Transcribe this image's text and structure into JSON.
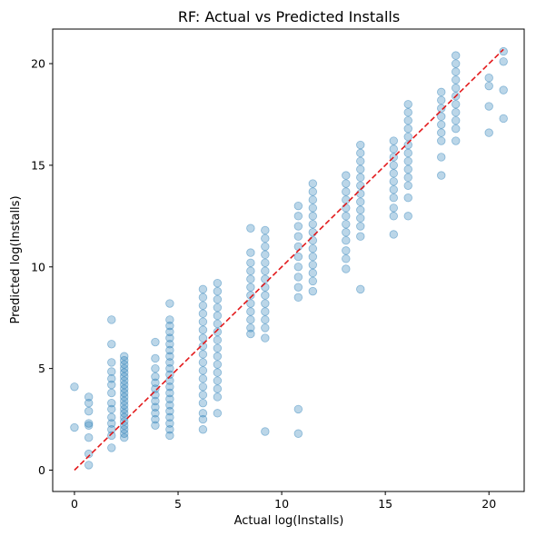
{
  "chart_data": {
    "type": "scatter",
    "title": "RF: Actual vs Predicted Installs",
    "xlabel": "Actual log(Installs)",
    "ylabel": "Predicted log(Installs)",
    "xlim": [
      -1.05,
      21.7
    ],
    "ylim": [
      -1.05,
      21.7
    ],
    "x_ticks": [
      0,
      5,
      10,
      15,
      20
    ],
    "y_ticks": [
      0,
      5,
      10,
      15,
      20
    ],
    "x_tick_labels": [
      "0",
      "5",
      "10",
      "15",
      "20"
    ],
    "y_tick_labels": [
      "0",
      "5",
      "10",
      "15",
      "20"
    ],
    "grid": false,
    "legend": "none",
    "colors": {
      "points": "#1f77b4",
      "reference_line": "#e31a1c"
    },
    "point_alpha": 0.3,
    "reference_line": {
      "from": [
        0,
        0
      ],
      "to": [
        20.7,
        20.7
      ],
      "style": "dashed"
    },
    "series": [
      {
        "points": [
          {
            "x": 0.0,
            "y": 4.1
          },
          {
            "x": 0.0,
            "y": 2.1
          },
          {
            "x": 0.69,
            "y": 3.6
          },
          {
            "x": 0.69,
            "y": 3.3
          },
          {
            "x": 0.69,
            "y": 2.9
          },
          {
            "x": 0.69,
            "y": 2.3
          },
          {
            "x": 0.69,
            "y": 2.2
          },
          {
            "x": 0.69,
            "y": 1.6
          },
          {
            "x": 0.69,
            "y": 0.8
          },
          {
            "x": 0.69,
            "y": 0.25
          },
          {
            "x": 1.79,
            "y": 7.4
          },
          {
            "x": 1.79,
            "y": 6.2
          },
          {
            "x": 1.79,
            "y": 5.3
          },
          {
            "x": 1.79,
            "y": 4.85
          },
          {
            "x": 1.79,
            "y": 4.5
          },
          {
            "x": 1.79,
            "y": 4.2
          },
          {
            "x": 1.79,
            "y": 3.8
          },
          {
            "x": 1.79,
            "y": 3.3
          },
          {
            "x": 1.79,
            "y": 3.0
          },
          {
            "x": 1.79,
            "y": 2.6
          },
          {
            "x": 1.79,
            "y": 2.3
          },
          {
            "x": 1.79,
            "y": 2.0
          },
          {
            "x": 1.79,
            "y": 1.7
          },
          {
            "x": 1.79,
            "y": 1.1
          },
          {
            "x": 2.4,
            "y": 5.6
          },
          {
            "x": 2.4,
            "y": 5.4
          },
          {
            "x": 2.4,
            "y": 5.2
          },
          {
            "x": 2.4,
            "y": 5.0
          },
          {
            "x": 2.4,
            "y": 4.8
          },
          {
            "x": 2.4,
            "y": 4.6
          },
          {
            "x": 2.4,
            "y": 4.4
          },
          {
            "x": 2.4,
            "y": 4.2
          },
          {
            "x": 2.4,
            "y": 4.0
          },
          {
            "x": 2.4,
            "y": 3.8
          },
          {
            "x": 2.4,
            "y": 3.6
          },
          {
            "x": 2.4,
            "y": 3.4
          },
          {
            "x": 2.4,
            "y": 3.2
          },
          {
            "x": 2.4,
            "y": 3.0
          },
          {
            "x": 2.4,
            "y": 2.8
          },
          {
            "x": 2.4,
            "y": 2.6
          },
          {
            "x": 2.4,
            "y": 2.4
          },
          {
            "x": 2.4,
            "y": 2.2
          },
          {
            "x": 2.4,
            "y": 2.0
          },
          {
            "x": 2.4,
            "y": 1.8
          },
          {
            "x": 2.4,
            "y": 1.6
          },
          {
            "x": 3.9,
            "y": 6.3
          },
          {
            "x": 3.9,
            "y": 5.5
          },
          {
            "x": 3.9,
            "y": 5.0
          },
          {
            "x": 3.9,
            "y": 4.6
          },
          {
            "x": 3.9,
            "y": 4.3
          },
          {
            "x": 3.9,
            "y": 4.0
          },
          {
            "x": 3.9,
            "y": 3.7
          },
          {
            "x": 3.9,
            "y": 3.4
          },
          {
            "x": 3.9,
            "y": 3.1
          },
          {
            "x": 3.9,
            "y": 2.8
          },
          {
            "x": 3.9,
            "y": 2.5
          },
          {
            "x": 3.9,
            "y": 2.2
          },
          {
            "x": 4.6,
            "y": 8.2
          },
          {
            "x": 4.6,
            "y": 7.4
          },
          {
            "x": 4.6,
            "y": 7.1
          },
          {
            "x": 4.6,
            "y": 6.8
          },
          {
            "x": 4.6,
            "y": 6.5
          },
          {
            "x": 4.6,
            "y": 6.2
          },
          {
            "x": 4.6,
            "y": 5.9
          },
          {
            "x": 4.6,
            "y": 5.6
          },
          {
            "x": 4.6,
            "y": 5.3
          },
          {
            "x": 4.6,
            "y": 5.0
          },
          {
            "x": 4.6,
            "y": 4.7
          },
          {
            "x": 4.6,
            "y": 4.4
          },
          {
            "x": 4.6,
            "y": 4.1
          },
          {
            "x": 4.6,
            "y": 3.8
          },
          {
            "x": 4.6,
            "y": 3.5
          },
          {
            "x": 4.6,
            "y": 3.2
          },
          {
            "x": 4.6,
            "y": 2.9
          },
          {
            "x": 4.6,
            "y": 2.6
          },
          {
            "x": 4.6,
            "y": 2.3
          },
          {
            "x": 4.6,
            "y": 2.0
          },
          {
            "x": 4.6,
            "y": 1.7
          },
          {
            "x": 6.2,
            "y": 8.9
          },
          {
            "x": 6.2,
            "y": 8.5
          },
          {
            "x": 6.2,
            "y": 8.1
          },
          {
            "x": 6.2,
            "y": 7.7
          },
          {
            "x": 6.2,
            "y": 7.3
          },
          {
            "x": 6.2,
            "y": 6.9
          },
          {
            "x": 6.2,
            "y": 6.5
          },
          {
            "x": 6.2,
            "y": 6.1
          },
          {
            "x": 6.2,
            "y": 5.7
          },
          {
            "x": 6.2,
            "y": 5.3
          },
          {
            "x": 6.2,
            "y": 4.9
          },
          {
            "x": 6.2,
            "y": 4.5
          },
          {
            "x": 6.2,
            "y": 4.1
          },
          {
            "x": 6.2,
            "y": 3.7
          },
          {
            "x": 6.2,
            "y": 3.3
          },
          {
            "x": 6.2,
            "y": 2.8
          },
          {
            "x": 6.2,
            "y": 2.5
          },
          {
            "x": 6.2,
            "y": 2.0
          },
          {
            "x": 6.9,
            "y": 9.2
          },
          {
            "x": 6.9,
            "y": 8.8
          },
          {
            "x": 6.9,
            "y": 8.4
          },
          {
            "x": 6.9,
            "y": 8.0
          },
          {
            "x": 6.9,
            "y": 7.6
          },
          {
            "x": 6.9,
            "y": 7.2
          },
          {
            "x": 6.9,
            "y": 6.8
          },
          {
            "x": 6.9,
            "y": 6.4
          },
          {
            "x": 6.9,
            "y": 6.0
          },
          {
            "x": 6.9,
            "y": 5.6
          },
          {
            "x": 6.9,
            "y": 5.2
          },
          {
            "x": 6.9,
            "y": 4.8
          },
          {
            "x": 6.9,
            "y": 4.4
          },
          {
            "x": 6.9,
            "y": 4.0
          },
          {
            "x": 6.9,
            "y": 3.6
          },
          {
            "x": 6.9,
            "y": 2.8
          },
          {
            "x": 8.5,
            "y": 11.9
          },
          {
            "x": 8.5,
            "y": 10.7
          },
          {
            "x": 8.5,
            "y": 10.2
          },
          {
            "x": 8.5,
            "y": 9.8
          },
          {
            "x": 8.5,
            "y": 9.4
          },
          {
            "x": 8.5,
            "y": 9.0
          },
          {
            "x": 8.5,
            "y": 8.6
          },
          {
            "x": 8.5,
            "y": 8.2
          },
          {
            "x": 8.5,
            "y": 7.8
          },
          {
            "x": 8.5,
            "y": 7.4
          },
          {
            "x": 8.5,
            "y": 7.0
          },
          {
            "x": 8.5,
            "y": 6.7
          },
          {
            "x": 9.2,
            "y": 11.8
          },
          {
            "x": 9.2,
            "y": 11.4
          },
          {
            "x": 9.2,
            "y": 11.0
          },
          {
            "x": 9.2,
            "y": 10.6
          },
          {
            "x": 9.2,
            "y": 10.2
          },
          {
            "x": 9.2,
            "y": 9.8
          },
          {
            "x": 9.2,
            "y": 9.4
          },
          {
            "x": 9.2,
            "y": 9.0
          },
          {
            "x": 9.2,
            "y": 8.6
          },
          {
            "x": 9.2,
            "y": 8.2
          },
          {
            "x": 9.2,
            "y": 7.8
          },
          {
            "x": 9.2,
            "y": 7.4
          },
          {
            "x": 9.2,
            "y": 7.0
          },
          {
            "x": 9.2,
            "y": 6.5
          },
          {
            "x": 9.2,
            "y": 1.9
          },
          {
            "x": 10.8,
            "y": 13.0
          },
          {
            "x": 10.8,
            "y": 12.5
          },
          {
            "x": 10.8,
            "y": 12.0
          },
          {
            "x": 10.8,
            "y": 11.5
          },
          {
            "x": 10.8,
            "y": 11.0
          },
          {
            "x": 10.8,
            "y": 10.5
          },
          {
            "x": 10.8,
            "y": 10.0
          },
          {
            "x": 10.8,
            "y": 9.5
          },
          {
            "x": 10.8,
            "y": 9.0
          },
          {
            "x": 10.8,
            "y": 8.5
          },
          {
            "x": 10.8,
            "y": 3.0
          },
          {
            "x": 10.8,
            "y": 1.8
          },
          {
            "x": 11.5,
            "y": 14.1
          },
          {
            "x": 11.5,
            "y": 13.7
          },
          {
            "x": 11.5,
            "y": 13.3
          },
          {
            "x": 11.5,
            "y": 12.9
          },
          {
            "x": 11.5,
            "y": 12.5
          },
          {
            "x": 11.5,
            "y": 12.1
          },
          {
            "x": 11.5,
            "y": 11.7
          },
          {
            "x": 11.5,
            "y": 11.3
          },
          {
            "x": 11.5,
            "y": 10.9
          },
          {
            "x": 11.5,
            "y": 10.5
          },
          {
            "x": 11.5,
            "y": 10.1
          },
          {
            "x": 11.5,
            "y": 9.7
          },
          {
            "x": 11.5,
            "y": 9.3
          },
          {
            "x": 11.5,
            "y": 8.8
          },
          {
            "x": 13.1,
            "y": 14.5
          },
          {
            "x": 13.1,
            "y": 14.1
          },
          {
            "x": 13.1,
            "y": 13.7
          },
          {
            "x": 13.1,
            "y": 13.3
          },
          {
            "x": 13.1,
            "y": 12.9
          },
          {
            "x": 13.1,
            "y": 12.5
          },
          {
            "x": 13.1,
            "y": 12.1
          },
          {
            "x": 13.1,
            "y": 11.7
          },
          {
            "x": 13.1,
            "y": 11.3
          },
          {
            "x": 13.1,
            "y": 10.8
          },
          {
            "x": 13.1,
            "y": 10.4
          },
          {
            "x": 13.1,
            "y": 9.9
          },
          {
            "x": 13.8,
            "y": 16.0
          },
          {
            "x": 13.8,
            "y": 15.6
          },
          {
            "x": 13.8,
            "y": 15.2
          },
          {
            "x": 13.8,
            "y": 14.8
          },
          {
            "x": 13.8,
            "y": 14.4
          },
          {
            "x": 13.8,
            "y": 14.0
          },
          {
            "x": 13.8,
            "y": 13.6
          },
          {
            "x": 13.8,
            "y": 13.2
          },
          {
            "x": 13.8,
            "y": 12.8
          },
          {
            "x": 13.8,
            "y": 12.4
          },
          {
            "x": 13.8,
            "y": 12.0
          },
          {
            "x": 13.8,
            "y": 11.5
          },
          {
            "x": 13.8,
            "y": 8.9
          },
          {
            "x": 15.4,
            "y": 16.2
          },
          {
            "x": 15.4,
            "y": 15.8
          },
          {
            "x": 15.4,
            "y": 15.4
          },
          {
            "x": 15.4,
            "y": 15.0
          },
          {
            "x": 15.4,
            "y": 14.6
          },
          {
            "x": 15.4,
            "y": 14.2
          },
          {
            "x": 15.4,
            "y": 13.8
          },
          {
            "x": 15.4,
            "y": 13.4
          },
          {
            "x": 15.4,
            "y": 12.9
          },
          {
            "x": 15.4,
            "y": 12.5
          },
          {
            "x": 15.4,
            "y": 11.6
          },
          {
            "x": 16.1,
            "y": 18.0
          },
          {
            "x": 16.1,
            "y": 17.6
          },
          {
            "x": 16.1,
            "y": 17.2
          },
          {
            "x": 16.1,
            "y": 16.8
          },
          {
            "x": 16.1,
            "y": 16.4
          },
          {
            "x": 16.1,
            "y": 16.0
          },
          {
            "x": 16.1,
            "y": 15.6
          },
          {
            "x": 16.1,
            "y": 15.2
          },
          {
            "x": 16.1,
            "y": 14.8
          },
          {
            "x": 16.1,
            "y": 14.4
          },
          {
            "x": 16.1,
            "y": 14.0
          },
          {
            "x": 16.1,
            "y": 13.4
          },
          {
            "x": 16.1,
            "y": 12.5
          },
          {
            "x": 17.7,
            "y": 18.6
          },
          {
            "x": 17.7,
            "y": 18.2
          },
          {
            "x": 17.7,
            "y": 17.8
          },
          {
            "x": 17.7,
            "y": 17.4
          },
          {
            "x": 17.7,
            "y": 17.0
          },
          {
            "x": 17.7,
            "y": 16.6
          },
          {
            "x": 17.7,
            "y": 16.2
          },
          {
            "x": 17.7,
            "y": 15.4
          },
          {
            "x": 17.7,
            "y": 14.5
          },
          {
            "x": 18.4,
            "y": 20.4
          },
          {
            "x": 18.4,
            "y": 20.0
          },
          {
            "x": 18.4,
            "y": 19.6
          },
          {
            "x": 18.4,
            "y": 19.2
          },
          {
            "x": 18.4,
            "y": 18.8
          },
          {
            "x": 18.4,
            "y": 18.4
          },
          {
            "x": 18.4,
            "y": 18.0
          },
          {
            "x": 18.4,
            "y": 17.6
          },
          {
            "x": 18.4,
            "y": 17.2
          },
          {
            "x": 18.4,
            "y": 16.8
          },
          {
            "x": 18.4,
            "y": 16.2
          },
          {
            "x": 20.0,
            "y": 19.3
          },
          {
            "x": 20.0,
            "y": 18.9
          },
          {
            "x": 20.0,
            "y": 17.9
          },
          {
            "x": 20.0,
            "y": 16.6
          },
          {
            "x": 20.7,
            "y": 20.6
          },
          {
            "x": 20.7,
            "y": 20.1
          },
          {
            "x": 20.7,
            "y": 18.7
          },
          {
            "x": 20.7,
            "y": 17.3
          }
        ]
      }
    ]
  }
}
